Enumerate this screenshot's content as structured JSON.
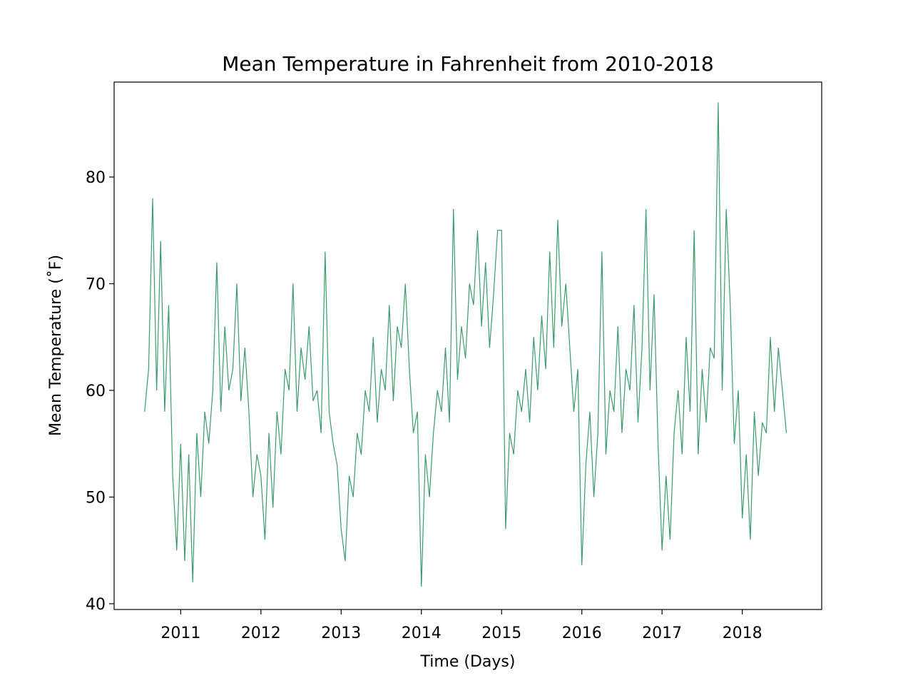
{
  "chart_data": {
    "type": "line",
    "title": "Mean Temperature in Fahrenheit from 2010-2018",
    "xlabel": "Time (Days)",
    "ylabel": "Mean Temperature (˚F)",
    "x": [
      2010.55,
      2010.6,
      2010.65,
      2010.7,
      2010.75,
      2010.8,
      2010.85,
      2010.9,
      2010.95,
      2011.0,
      2011.05,
      2011.1,
      2011.15,
      2011.2,
      2011.25,
      2011.3,
      2011.35,
      2011.4,
      2011.45,
      2011.5,
      2011.55,
      2011.6,
      2011.65,
      2011.7,
      2011.75,
      2011.8,
      2011.85,
      2011.9,
      2011.95,
      2012.0,
      2012.05,
      2012.1,
      2012.15,
      2012.2,
      2012.25,
      2012.3,
      2012.35,
      2012.4,
      2012.45,
      2012.5,
      2012.55,
      2012.6,
      2012.65,
      2012.7,
      2012.75,
      2012.8,
      2012.85,
      2012.9,
      2012.95,
      2013.0,
      2013.05,
      2013.1,
      2013.15,
      2013.2,
      2013.25,
      2013.3,
      2013.35,
      2013.4,
      2013.45,
      2013.5,
      2013.55,
      2013.6,
      2013.65,
      2013.7,
      2013.75,
      2013.8,
      2013.85,
      2013.9,
      2013.95,
      2014.0,
      2014.05,
      2014.1,
      2014.15,
      2014.2,
      2014.25,
      2014.3,
      2014.35,
      2014.4,
      2014.45,
      2014.5,
      2014.55,
      2014.6,
      2014.65,
      2014.7,
      2014.75,
      2014.8,
      2014.85,
      2014.9,
      2014.95,
      2015.0,
      2015.05,
      2015.1,
      2015.15,
      2015.2,
      2015.25,
      2015.3,
      2015.35,
      2015.4,
      2015.45,
      2015.5,
      2015.55,
      2015.6,
      2015.65,
      2015.7,
      2015.75,
      2015.8,
      2015.85,
      2015.9,
      2015.95,
      2016.0,
      2016.05,
      2016.1,
      2016.15,
      2016.2,
      2016.25,
      2016.3,
      2016.35,
      2016.4,
      2016.45,
      2016.5,
      2016.55,
      2016.6,
      2016.65,
      2016.7,
      2016.75,
      2016.8,
      2016.85,
      2016.9,
      2016.95,
      2017.0,
      2017.05,
      2017.1,
      2017.15,
      2017.2,
      2017.25,
      2017.3,
      2017.35,
      2017.4,
      2017.45,
      2017.5,
      2017.55,
      2017.6,
      2017.65,
      2017.7,
      2017.75,
      2017.8,
      2017.85,
      2017.9,
      2017.95,
      2018.0,
      2018.05,
      2018.1,
      2018.15,
      2018.2,
      2018.25,
      2018.3,
      2018.35,
      2018.4,
      2018.45,
      2018.5,
      2018.55
    ],
    "series": [
      {
        "color": "#3a9b6d",
        "values": [
          58,
          62,
          78,
          60,
          74,
          58,
          68,
          52,
          45,
          55,
          44,
          54,
          42,
          56,
          50,
          58,
          55,
          60,
          72,
          58,
          66,
          60,
          62,
          70,
          59,
          64,
          58,
          50,
          54,
          52,
          46,
          56,
          49,
          58,
          54,
          62,
          60,
          70,
          58,
          64,
          61,
          66,
          59,
          60,
          56,
          73,
          58,
          55,
          53,
          47,
          44,
          52,
          50,
          56,
          54,
          60,
          58,
          65,
          57,
          62,
          60,
          68,
          59,
          66,
          64,
          70,
          62,
          56,
          58,
          41.6,
          54,
          50,
          56,
          60,
          58,
          64,
          57,
          77,
          61,
          66,
          63,
          70,
          68,
          75,
          66,
          72,
          64,
          69,
          75,
          75,
          47,
          56,
          54,
          60,
          58,
          62,
          57,
          65,
          60,
          67,
          62,
          73,
          64,
          76,
          66,
          70,
          64,
          58,
          62,
          43.6,
          53,
          58,
          50,
          56,
          73,
          54,
          60,
          58,
          66,
          56,
          62,
          60,
          68,
          57,
          64,
          77,
          60,
          69,
          55,
          45,
          52,
          46,
          56,
          60,
          54,
          65,
          58,
          75,
          54,
          62,
          57,
          64,
          63,
          87,
          60,
          77,
          68,
          55,
          60,
          48,
          54,
          46,
          58,
          52,
          57,
          56,
          65,
          58,
          64,
          60,
          56
        ]
      }
    ],
    "xlim": [
      2010.17,
      2018.99
    ],
    "xticks": [
      2011,
      2012,
      2013,
      2014,
      2015,
      2016,
      2017,
      2018
    ],
    "ylim": [
      39.46,
      88.9
    ],
    "yticks": [
      40,
      50,
      60,
      70,
      80
    ]
  }
}
